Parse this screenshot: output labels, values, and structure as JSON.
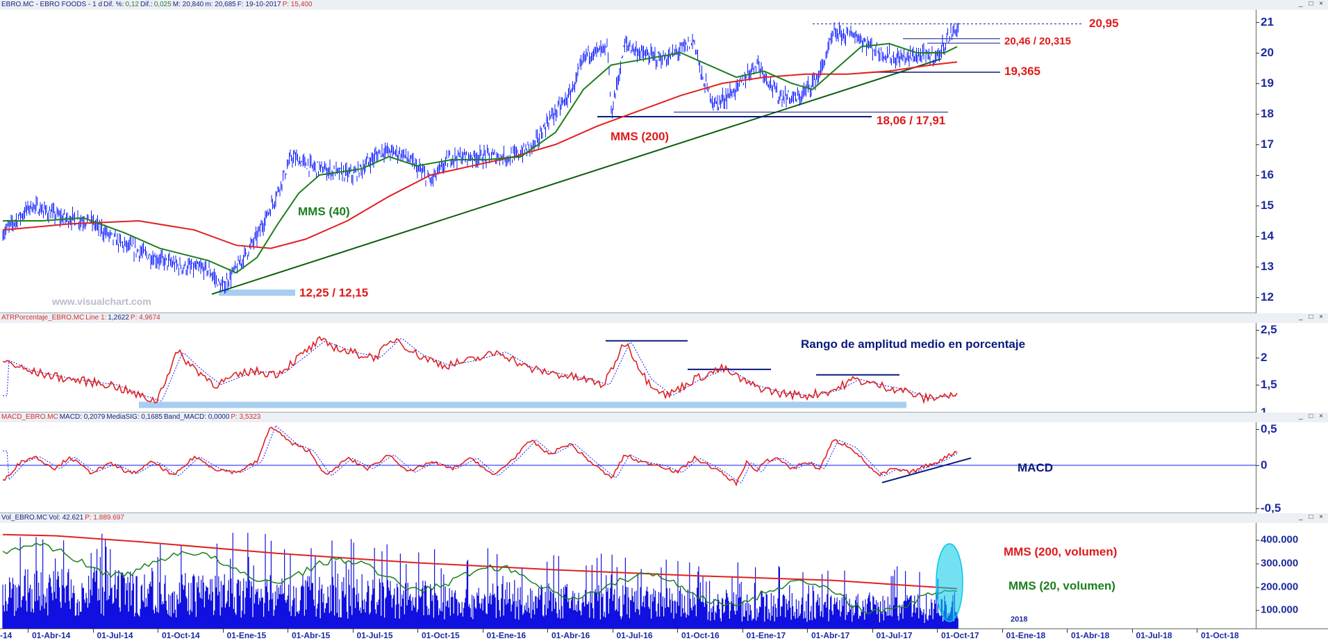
{
  "panes": {
    "price": {
      "header": [
        {
          "t": "EBRO.MC - EBRO FOODS - 1 d",
          "c": "k"
        },
        {
          "t": "Dif. %:",
          "c": "k"
        },
        {
          "t": "0,12",
          "c": "v"
        },
        {
          "t": "Dif.:",
          "c": "k"
        },
        {
          "t": "0,025",
          "c": "v"
        },
        {
          "t": "M: 20,840",
          "c": "k"
        },
        {
          "t": "m: 20,685",
          "c": "k"
        },
        {
          "t": "F: 19-10-2017",
          "c": "k"
        },
        {
          "t": "P: 15,400",
          "c": "p"
        }
      ],
      "yticks": [
        "21",
        "20",
        "19",
        "18",
        "17",
        "16",
        "15",
        "14",
        "13",
        "12"
      ],
      "annotations": {
        "level_2095": "20,95",
        "level_2046": "20,46 / 20,315",
        "level_19365": "19,365",
        "level_1806": "18,06 / 17,91",
        "mms200": "MMS (200)",
        "mms40": "MMS (40)",
        "low": "12,25 / 12,15",
        "watermark": "www.visualchart.com"
      }
    },
    "atr": {
      "header": [
        {
          "t": "ATRPorcentaje_EBRO.MC",
          "c": "p"
        },
        {
          "t": "Line 1:",
          "c": "p"
        },
        {
          "t": "1,2622",
          "c": "k"
        },
        {
          "t": "P: 4,9674",
          "c": "p"
        }
      ],
      "yticks": [
        "2,5",
        "2",
        "1,5",
        "1"
      ],
      "annotations": {
        "title": "Rango de amplitud medio en porcentaje"
      }
    },
    "macd": {
      "header": [
        {
          "t": "MACD_EBRO.MC",
          "c": "p"
        },
        {
          "t": "MACD: 0,2079",
          "c": "k"
        },
        {
          "t": "MediaSIG: 0,1685",
          "c": "k"
        },
        {
          "t": "Band_MACD: 0,0000",
          "c": "k"
        },
        {
          "t": "P: 3,5323",
          "c": "p"
        }
      ],
      "yticks": [
        "0,5",
        "0",
        "-0,5"
      ],
      "annotations": {
        "title": "MACD"
      }
    },
    "vol": {
      "header": [
        {
          "t": "Vol_EBRO.MC",
          "c": "k"
        },
        {
          "t": "Vol: 42.621",
          "c": "k"
        },
        {
          "t": "P: 1.889.697",
          "c": "p"
        }
      ],
      "yticks": [
        "400.000",
        "300.000",
        "200.000",
        "100.000"
      ],
      "annotations": {
        "mms200": "MMS (200, volumen)",
        "mms20": "MMS (20, volumen)",
        "year": "2018"
      }
    }
  },
  "window_buttons": "_ □ ×",
  "xaxis": [
    "-14",
    "01-Abr-14",
    "01-Jul-14",
    "01-Oct-14",
    "01-Ene-15",
    "01-Abr-15",
    "01-Jul-15",
    "01-Oct-15",
    "01-Ene-16",
    "01-Abr-16",
    "01-Jul-16",
    "01-Oct-16",
    "01-Ene-17",
    "01-Abr-17",
    "01-Jul-17",
    "01-Oct-17",
    "01-Ene-18",
    "01-Abr-18",
    "01-Jul-18",
    "01-Oct-18"
  ],
  "colors": {
    "price": "#0a1aff",
    "mms40": "#1b7f1b",
    "mms200": "#e02020",
    "trend": "#0d5c0d",
    "support": "#0a1a7a",
    "highlight": "#a8cdf0",
    "volume": "#1010e0",
    "callout": "#00c8e8",
    "label_red": "#e01a1a",
    "label_green": "#1b7f1b",
    "label_navy": "#0a1a7a"
  }
}
